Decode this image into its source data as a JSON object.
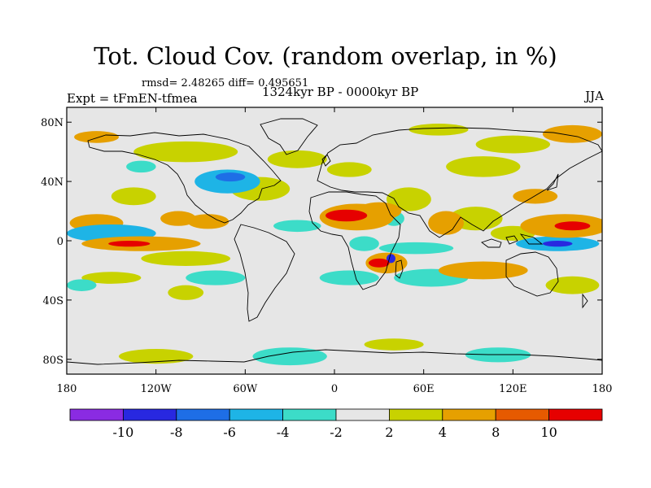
{
  "chart_data": {
    "type": "heatmap",
    "title": "Tot. Cloud Cov. (random overlap, in %)",
    "stats_text": "rmsd= 2.48265 diff= 0.495651",
    "experiment_text": "Expt = tFmEN-tfmea",
    "period_text": "1324kyr BP - 0000kyr BP",
    "season": "JJA",
    "x_axis": {
      "range": [
        -180,
        180
      ],
      "ticks": [
        {
          "value": -180,
          "label": "180"
        },
        {
          "value": -120,
          "label": "120W"
        },
        {
          "value": -60,
          "label": "60W"
        },
        {
          "value": 0,
          "label": "0"
        },
        {
          "value": 60,
          "label": "60E"
        },
        {
          "value": 120,
          "label": "120E"
        },
        {
          "value": 180,
          "label": "180"
        }
      ]
    },
    "y_axis": {
      "range": [
        -90,
        90
      ],
      "ticks": [
        {
          "value": 80,
          "label": "80N"
        },
        {
          "value": 40,
          "label": "40N"
        },
        {
          "value": 0,
          "label": "0"
        },
        {
          "value": -40,
          "label": "40S"
        },
        {
          "value": -80,
          "label": "80S"
        }
      ]
    },
    "colorbar": {
      "levels": [
        -10,
        -8,
        -6,
        -4,
        -2,
        2,
        4,
        8,
        10
      ],
      "colors": [
        "#8a2be2",
        "#2828e0",
        "#1e6ee6",
        "#1eb4e6",
        "#3cdcc8",
        "#e6e6e6",
        "#c8d200",
        "#e6a000",
        "#e65a00",
        "#e60000"
      ],
      "labels": [
        "-10",
        "-8",
        "-6",
        "-4",
        "-2",
        "2",
        "4",
        "8",
        "10"
      ]
    },
    "background_color": "#e6e6e6",
    "anomaly_regions": [
      {
        "lon": -160,
        "lat": 12,
        "rlon": 18,
        "rlat": 6,
        "value": 5
      },
      {
        "lon": -150,
        "lat": 5,
        "rlon": 30,
        "rlat": 6,
        "value": -5
      },
      {
        "lon": -130,
        "lat": -2,
        "rlon": 40,
        "rlat": 5,
        "value": 6
      },
      {
        "lon": -138,
        "lat": -2,
        "rlon": 14,
        "rlat": 2,
        "value": 11
      },
      {
        "lon": -105,
        "lat": 15,
        "rlon": 12,
        "rlat": 5,
        "value": 6
      },
      {
        "lon": -85,
        "lat": 13,
        "rlon": 14,
        "rlat": 5,
        "value": 7
      },
      {
        "lon": -72,
        "lat": 40,
        "rlon": 22,
        "rlat": 8,
        "value": -5
      },
      {
        "lon": -70,
        "lat": 43,
        "rlon": 10,
        "rlat": 3,
        "value": -7
      },
      {
        "lon": -50,
        "lat": 35,
        "rlon": 20,
        "rlat": 8,
        "value": 3
      },
      {
        "lon": -25,
        "lat": 10,
        "rlon": 16,
        "rlat": 4,
        "value": -3
      },
      {
        "lon": -100,
        "lat": -12,
        "rlon": 30,
        "rlat": 5,
        "value": 3
      },
      {
        "lon": -135,
        "lat": 30,
        "rlon": 15,
        "rlat": 6,
        "value": 3
      },
      {
        "lon": -150,
        "lat": -25,
        "rlon": 20,
        "rlat": 4,
        "value": 3
      },
      {
        "lon": -80,
        "lat": -25,
        "rlon": 20,
        "rlat": 5,
        "value": -3
      },
      {
        "lon": -100,
        "lat": -35,
        "rlon": 12,
        "rlat": 5,
        "value": 3
      },
      {
        "lon": -170,
        "lat": -30,
        "rlon": 10,
        "rlat": 4,
        "value": -3
      },
      {
        "lon": 15,
        "lat": 16,
        "rlon": 25,
        "rlat": 9,
        "value": 6
      },
      {
        "lon": 8,
        "lat": 17,
        "rlon": 14,
        "rlat": 4,
        "value": 11
      },
      {
        "lon": 30,
        "lat": 20,
        "rlon": 15,
        "rlat": 6,
        "value": 6
      },
      {
        "lon": 40,
        "lat": 15,
        "rlon": 7,
        "rlat": 5,
        "value": -4
      },
      {
        "lon": 50,
        "lat": 28,
        "rlon": 15,
        "rlat": 8,
        "value": 3
      },
      {
        "lon": 35,
        "lat": -15,
        "rlon": 14,
        "rlat": 7,
        "value": 7
      },
      {
        "lon": 30,
        "lat": -15,
        "rlon": 7,
        "rlat": 3,
        "value": 10
      },
      {
        "lon": 38,
        "lat": -12,
        "rlon": 3,
        "rlat": 3,
        "value": -9
      },
      {
        "lon": 10,
        "lat": -25,
        "rlon": 20,
        "rlat": 5,
        "value": -3
      },
      {
        "lon": 65,
        "lat": -25,
        "rlon": 25,
        "rlat": 6,
        "value": -3
      },
      {
        "lon": 55,
        "lat": -5,
        "rlon": 25,
        "rlat": 4,
        "value": -3
      },
      {
        "lon": 20,
        "lat": -2,
        "rlon": 10,
        "rlat": 5,
        "value": -3
      },
      {
        "lon": 95,
        "lat": 15,
        "rlon": 18,
        "rlat": 8,
        "value": 3
      },
      {
        "lon": 75,
        "lat": 12,
        "rlon": 12,
        "rlat": 8,
        "value": 5
      },
      {
        "lon": 120,
        "lat": 5,
        "rlon": 15,
        "rlat": 5,
        "value": 3
      },
      {
        "lon": 155,
        "lat": 10,
        "rlon": 30,
        "rlat": 8,
        "value": 7
      },
      {
        "lon": 160,
        "lat": 10,
        "rlon": 12,
        "rlat": 3,
        "value": 10
      },
      {
        "lon": 150,
        "lat": -2,
        "rlon": 28,
        "rlat": 5,
        "value": -6
      },
      {
        "lon": 150,
        "lat": -2,
        "rlon": 10,
        "rlat": 2,
        "value": -9
      },
      {
        "lon": 100,
        "lat": -20,
        "rlon": 30,
        "rlat": 6,
        "value": 6
      },
      {
        "lon": 160,
        "lat": -30,
        "rlon": 18,
        "rlat": 6,
        "value": 3
      },
      {
        "lon": 135,
        "lat": 30,
        "rlon": 15,
        "rlat": 5,
        "value": 4
      },
      {
        "lon": 100,
        "lat": 50,
        "rlon": 25,
        "rlat": 7,
        "value": 3
      },
      {
        "lon": -25,
        "lat": 55,
        "rlon": 20,
        "rlat": 6,
        "value": 3
      },
      {
        "lon": 10,
        "lat": 48,
        "rlon": 15,
        "rlat": 5,
        "value": 3
      },
      {
        "lon": -100,
        "lat": 60,
        "rlon": 35,
        "rlat": 7,
        "value": 3
      },
      {
        "lon": -160,
        "lat": 70,
        "rlon": 15,
        "rlat": 4,
        "value": 5
      },
      {
        "lon": 160,
        "lat": 72,
        "rlon": 20,
        "rlat": 6,
        "value": 7
      },
      {
        "lon": 120,
        "lat": 65,
        "rlon": 25,
        "rlat": 6,
        "value": 3
      },
      {
        "lon": 70,
        "lat": 75,
        "rlon": 20,
        "rlat": 4,
        "value": 3
      },
      {
        "lon": -130,
        "lat": 50,
        "rlon": 10,
        "rlat": 4,
        "value": -3
      },
      {
        "lon": -30,
        "lat": -78,
        "rlon": 25,
        "rlat": 6,
        "value": -3
      },
      {
        "lon": -120,
        "lat": -78,
        "rlon": 25,
        "rlat": 5,
        "value": 3
      },
      {
        "lon": 110,
        "lat": -77,
        "rlon": 22,
        "rlat": 5,
        "value": -3
      },
      {
        "lon": 40,
        "lat": -70,
        "rlon": 20,
        "rlat": 4,
        "value": 3
      }
    ]
  }
}
